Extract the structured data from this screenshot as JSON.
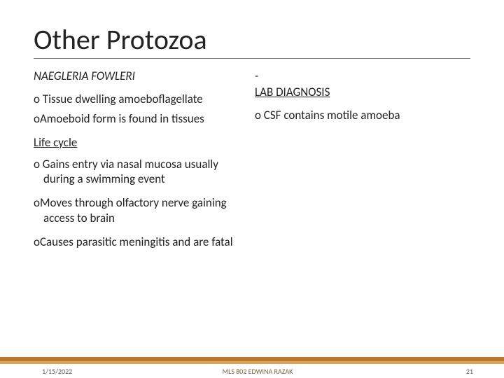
{
  "title": "Other Protozoa",
  "left": {
    "heading": "NAEGLERIA FOWLERI",
    "bullets": [
      "o Tissue dwelling amoeboflagellate",
      "oAmoeboid form is found in tissues"
    ],
    "section": "Life cycle",
    "cycle": [
      "o Gains entry via nasal mucosa usually during a swimming event",
      "oMoves through olfactory nerve gaining access to brain",
      "oCauses parasitic meningitis and are fatal"
    ]
  },
  "right": {
    "dash": "-",
    "heading": "LAB DIAGNOSIS",
    "bullets": [
      "o CSF contains motile amoeba"
    ]
  },
  "footer": {
    "date": "1/15/2022",
    "center": "MLS 802  EDWINA RAZAK",
    "page": "21",
    "band_top_color": "#b97a2f",
    "band_mid_color": "#d9a45a"
  }
}
